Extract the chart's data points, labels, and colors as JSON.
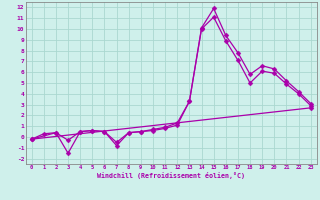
{
  "xlabel": "Windchill (Refroidissement éolien,°C)",
  "bg_color": "#cff0eb",
  "grid_color": "#aad8d0",
  "line_color": "#aa00aa",
  "marker": "D",
  "markersize": 2.5,
  "linewidth": 0.9,
  "xlim": [
    -0.5,
    23.5
  ],
  "ylim": [
    -2.5,
    12.5
  ],
  "xticks": [
    0,
    1,
    2,
    3,
    4,
    5,
    6,
    7,
    8,
    9,
    10,
    11,
    12,
    13,
    14,
    15,
    16,
    17,
    18,
    19,
    20,
    21,
    22,
    23
  ],
  "yticks": [
    -2,
    -1,
    0,
    1,
    2,
    3,
    4,
    5,
    6,
    7,
    8,
    9,
    10,
    11,
    12
  ],
  "line1_x": [
    0,
    1,
    2,
    3,
    4,
    5,
    6,
    7,
    8,
    9,
    10,
    11,
    12,
    13,
    14,
    15,
    16,
    17,
    18,
    19,
    20,
    21,
    22,
    23
  ],
  "line1_y": [
    -0.2,
    0.3,
    0.4,
    -0.3,
    0.5,
    0.6,
    0.5,
    -0.5,
    0.4,
    0.5,
    0.6,
    0.8,
    1.1,
    3.3,
    10.1,
    11.9,
    9.4,
    7.8,
    5.8,
    6.6,
    6.3,
    5.2,
    4.2,
    3.1
  ],
  "line2_x": [
    0,
    2,
    3,
    4,
    5,
    6,
    7,
    8,
    9,
    10,
    11,
    12,
    13,
    14,
    15,
    16,
    17,
    18,
    19,
    20,
    21,
    22,
    23
  ],
  "line2_y": [
    -0.2,
    0.4,
    -1.5,
    0.5,
    0.6,
    0.5,
    -0.8,
    0.4,
    0.5,
    0.7,
    0.9,
    1.3,
    3.3,
    10.0,
    11.1,
    8.9,
    7.1,
    5.0,
    6.1,
    5.9,
    4.9,
    4.0,
    2.9
  ],
  "line3_x": [
    0,
    23
  ],
  "line3_y": [
    -0.2,
    2.7
  ]
}
